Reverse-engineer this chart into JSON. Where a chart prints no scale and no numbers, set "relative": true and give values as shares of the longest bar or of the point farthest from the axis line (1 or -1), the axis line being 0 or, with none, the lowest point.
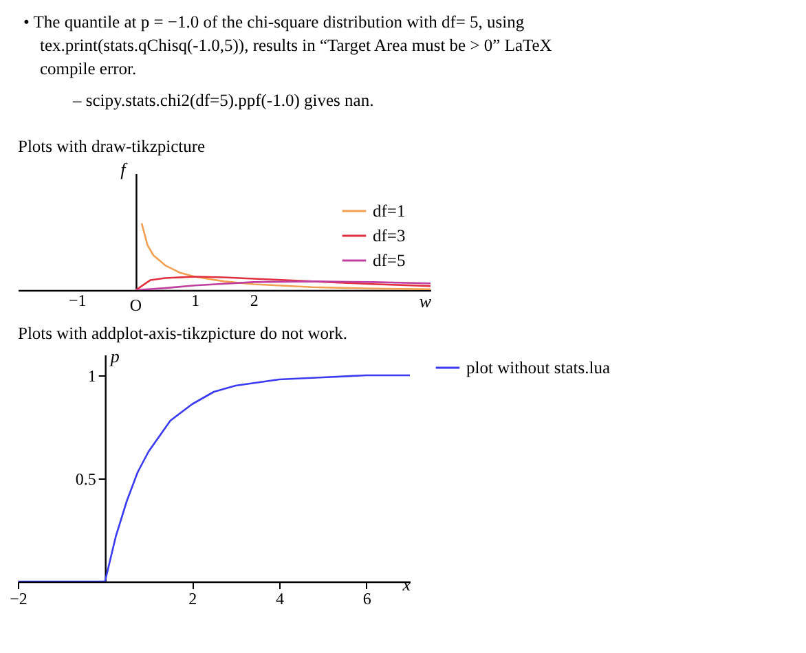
{
  "chart_data": [
    {
      "type": "other",
      "annotations": [
        "• The quantile at p = −1.0 of the chi-square distribution with df= 5, using tex.print(stats.qChisq(-1.0,5)), results in “Target Area must be > 0” LaTeX compile error.",
        "– scipy.stats.chi2(df=5).ppf(-1.0) gives nan."
      ]
    },
    {
      "type": "line",
      "title": "Plots with draw-tikzpicture",
      "xlabel": "w",
      "ylabel": "f",
      "relative": true,
      "xlim": [
        -2,
        5
      ],
      "xticks": [
        -1,
        1,
        2
      ],
      "annotations": [
        {
          "text": "O",
          "x": 0,
          "y": 0
        }
      ],
      "legend": "top right",
      "grid": false,
      "series": [
        {
          "name": "df=1",
          "color": "#f0a050",
          "x": [
            0.1,
            0.2,
            0.3,
            0.5,
            0.75,
            1,
            1.5,
            2,
            3,
            4,
            5
          ],
          "values": [
            1,
            0.67,
            0.52,
            0.37,
            0.26,
            0.2,
            0.13,
            0.087,
            0.043,
            0.023,
            0.012
          ]
        },
        {
          "name": "df=3",
          "color": "#e03040",
          "x": [
            0,
            0.25,
            0.5,
            1,
            1.5,
            2,
            3,
            4,
            5
          ],
          "values": [
            0,
            0.15,
            0.18,
            0.2,
            0.19,
            0.17,
            0.13,
            0.09,
            0.06
          ]
        },
        {
          "name": "df=5",
          "color": "#c040a0",
          "x": [
            0,
            0.5,
            1,
            2,
            3,
            4,
            5
          ],
          "values": [
            0,
            0.03,
            0.07,
            0.12,
            0.13,
            0.12,
            0.1
          ]
        }
      ]
    },
    {
      "type": "line",
      "title": "Plots with addplot-axis-tikzpicture do not work.",
      "xlabel": "x",
      "ylabel": "p",
      "xlim": [
        -2,
        7
      ],
      "xticks": [
        -2,
        2,
        4,
        6
      ],
      "ylim": [
        0,
        1.1
      ],
      "yticks": [
        0.5,
        1
      ],
      "legend": "right",
      "grid": false,
      "series": [
        {
          "name": "plot without stats.lua",
          "color": "#3a3af0",
          "x": [
            -2,
            0,
            0.25,
            0.5,
            0.75,
            1,
            1.5,
            2,
            2.5,
            3,
            4,
            5,
            6,
            7
          ],
          "values": [
            0,
            0,
            0.22,
            0.39,
            0.53,
            0.63,
            0.78,
            0.86,
            0.92,
            0.95,
            0.98,
            0.99,
            1.0,
            1.0
          ]
        }
      ]
    }
  ]
}
